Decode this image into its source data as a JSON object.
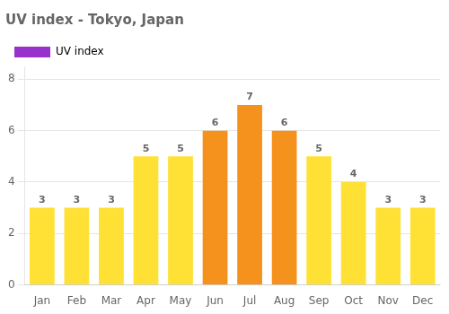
{
  "chart_data": {
    "type": "bar",
    "title": "UV index - Tokyo, Japan",
    "categories": [
      "Jan",
      "Feb",
      "Mar",
      "Apr",
      "May",
      "Jun",
      "Jul",
      "Aug",
      "Sep",
      "Oct",
      "Nov",
      "Dec"
    ],
    "series": [
      {
        "name": "UV index",
        "color": "#9932CC",
        "colors": [
          "#FFE135",
          "#FFE135",
          "#FFE135",
          "#FFE135",
          "#FFE135",
          "#F5921E",
          "#F5921E",
          "#F5921E",
          "#FFE135",
          "#FFE135",
          "#FFE135",
          "#FFE135"
        ],
        "values": [
          3,
          3,
          3,
          5,
          5,
          6,
          7,
          6,
          5,
          4,
          3,
          3
        ]
      }
    ],
    "ylim": [
      0,
      8.5
    ],
    "yticks": [
      0,
      2,
      4,
      6,
      8
    ],
    "grid": true,
    "legend": "upper left",
    "data_labels": true
  }
}
